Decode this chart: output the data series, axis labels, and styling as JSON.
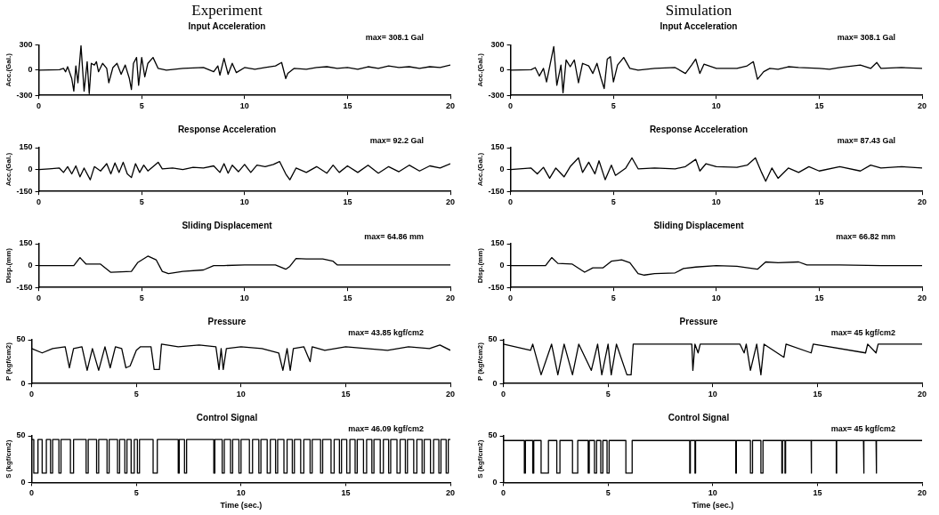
{
  "chart_data": [
    {
      "type": "line",
      "title": "Experiment",
      "subtitle": "Input Acceleration",
      "ylabel": "Acc.(Gal.)",
      "annotations": [
        "max= 308.1 Gal"
      ],
      "color": "#000000",
      "xlim": [
        0,
        20
      ],
      "xticks": [
        0,
        5,
        10,
        15,
        20
      ],
      "ylim": [
        -300,
        300
      ],
      "yticks": [
        -300,
        0,
        300
      ],
      "x": [
        0,
        1,
        1.2,
        1.3,
        1.4,
        1.6,
        1.7,
        1.8,
        1.9,
        2.05,
        2.2,
        2.35,
        2.45,
        2.55,
        2.7,
        2.8,
        2.9,
        3.1,
        3.3,
        3.4,
        3.6,
        3.8,
        4.0,
        4.2,
        4.4,
        4.5,
        4.6,
        4.75,
        4.85,
        5.0,
        5.15,
        5.3,
        5.55,
        5.8,
        6.2,
        7,
        8,
        8.5,
        8.7,
        8.8,
        9.0,
        9.2,
        9.4,
        9.6,
        10,
        10.5,
        11,
        11.5,
        11.8,
        12.0,
        12.1,
        12.4,
        13,
        13.5,
        14,
        14.5,
        15,
        15.5,
        16,
        16.5,
        17,
        17.5,
        18,
        18.5,
        19,
        19.5,
        20
      ],
      "values": [
        0,
        5,
        20,
        -20,
        40,
        -100,
        -250,
        50,
        -150,
        290,
        -250,
        100,
        -280,
        80,
        60,
        100,
        -20,
        80,
        20,
        -150,
        30,
        80,
        -50,
        60,
        -100,
        -230,
        80,
        150,
        -180,
        150,
        -80,
        80,
        150,
        20,
        0,
        20,
        30,
        -20,
        50,
        -60,
        140,
        -50,
        80,
        -30,
        30,
        10,
        30,
        50,
        90,
        -100,
        -40,
        20,
        10,
        30,
        40,
        20,
        30,
        10,
        40,
        20,
        50,
        30,
        40,
        20,
        40,
        30,
        60
      ]
    },
    {
      "type": "line",
      "title": "Simulation",
      "subtitle": "Input Acceleration",
      "ylabel": "Acc.(Gal.)",
      "annotations": [
        "max= 308.1 Gal"
      ],
      "color": "#000000",
      "xlim": [
        0,
        20
      ],
      "xticks": [
        0,
        5,
        10,
        15,
        20
      ],
      "ylim": [
        -300,
        300
      ],
      "yticks": [
        -300,
        0,
        300
      ],
      "x": [
        0,
        1,
        1.2,
        1.4,
        1.6,
        1.75,
        1.95,
        2.1,
        2.25,
        2.45,
        2.55,
        2.7,
        2.9,
        3.1,
        3.3,
        3.5,
        3.8,
        4.0,
        4.2,
        4.4,
        4.55,
        4.7,
        4.85,
        5.0,
        5.2,
        5.5,
        5.8,
        6.2,
        7,
        8,
        8.5,
        8.8,
        9.0,
        9.2,
        9.4,
        10,
        11,
        11.5,
        11.8,
        12.0,
        12.3,
        12.6,
        13,
        13.5,
        14,
        15,
        15.5,
        16,
        17,
        17.5,
        17.8,
        18,
        19,
        20
      ],
      "values": [
        0,
        5,
        30,
        -70,
        20,
        -140,
        100,
        280,
        -180,
        60,
        -270,
        120,
        40,
        120,
        -150,
        80,
        50,
        -40,
        80,
        -100,
        -220,
        130,
        160,
        -140,
        60,
        150,
        20,
        0,
        20,
        30,
        -40,
        60,
        130,
        -40,
        70,
        20,
        20,
        50,
        100,
        -110,
        -20,
        20,
        10,
        40,
        30,
        20,
        10,
        30,
        60,
        20,
        90,
        20,
        30,
        20
      ]
    },
    {
      "type": "line",
      "title": "Response Acceleration",
      "ylabel": "Acc.(Gal.)",
      "annotations": [
        "max= 92.2 Gal"
      ],
      "color": "#000000",
      "xlim": [
        0,
        20
      ],
      "xticks": [
        0,
        5,
        10,
        15,
        20
      ],
      "ylim": [
        -150,
        150
      ],
      "yticks": [
        -150,
        0,
        150
      ],
      "x": [
        0,
        0.5,
        1,
        1.2,
        1.4,
        1.6,
        1.8,
        2.0,
        2.2,
        2.5,
        2.7,
        3.0,
        3.3,
        3.5,
        3.7,
        3.9,
        4.1,
        4.3,
        4.5,
        4.7,
        4.9,
        5.1,
        5.3,
        5.8,
        6.0,
        6.5,
        7,
        7.5,
        8,
        8.5,
        8.8,
        9.0,
        9.2,
        9.4,
        9.7,
        10,
        10.3,
        10.6,
        11,
        11.4,
        11.7,
        12.0,
        12.2,
        12.5,
        13,
        13.5,
        14,
        14.3,
        14.6,
        15,
        15.5,
        16,
        16.5,
        17,
        17.5,
        18,
        18.5,
        19,
        19.5,
        20
      ],
      "values": [
        0,
        5,
        10,
        -20,
        20,
        -30,
        25,
        -50,
        10,
        -70,
        20,
        -10,
        40,
        -30,
        45,
        -20,
        50,
        -30,
        -55,
        40,
        -20,
        30,
        -10,
        50,
        5,
        10,
        0,
        15,
        10,
        25,
        -20,
        40,
        -25,
        30,
        -15,
        35,
        -20,
        30,
        20,
        35,
        55,
        -30,
        -70,
        10,
        -20,
        20,
        -25,
        30,
        -20,
        25,
        -20,
        30,
        -25,
        20,
        -15,
        30,
        -10,
        25,
        10,
        40
      ]
    },
    {
      "type": "line",
      "title": "Response Acceleration",
      "ylabel": "Acc.(Gal.)",
      "annotations": [
        "max= 87.43 Gal"
      ],
      "color": "#000000",
      "xlim": [
        0,
        20
      ],
      "xticks": [
        0,
        5,
        10,
        15,
        20
      ],
      "ylim": [
        -150,
        150
      ],
      "yticks": [
        -150,
        0,
        150
      ],
      "x": [
        0,
        1,
        1.3,
        1.6,
        1.9,
        2.2,
        2.6,
        2.9,
        3.3,
        3.5,
        3.8,
        4.1,
        4.3,
        4.6,
        4.9,
        5.1,
        5.6,
        5.9,
        6.2,
        7,
        8,
        8.5,
        9.0,
        9.2,
        9.5,
        10,
        11,
        11.5,
        11.9,
        12.2,
        12.4,
        12.7,
        13,
        13.5,
        14,
        14.5,
        15,
        16,
        17,
        17.5,
        18,
        19,
        20
      ],
      "values": [
        0,
        10,
        -30,
        15,
        -60,
        10,
        -50,
        20,
        80,
        -20,
        50,
        -30,
        60,
        -70,
        30,
        -40,
        10,
        80,
        5,
        10,
        5,
        20,
        70,
        -10,
        40,
        20,
        15,
        30,
        80,
        -20,
        -80,
        10,
        -60,
        10,
        -20,
        20,
        -10,
        20,
        -10,
        30,
        10,
        20,
        10
      ]
    },
    {
      "type": "line",
      "title": "Sliding Displacement",
      "ylabel": "Disp.(mm)",
      "annotations": [
        "max= 64.86 mm"
      ],
      "color": "#000000",
      "xlim": [
        0,
        20
      ],
      "xticks": [
        0,
        5,
        10,
        15,
        20
      ],
      "ylim": [
        -150,
        150
      ],
      "yticks": [
        -150,
        0,
        150
      ],
      "x": [
        0,
        1.7,
        2.0,
        2.3,
        3,
        3.5,
        4.5,
        4.8,
        5.3,
        5.7,
        6.0,
        6.3,
        7,
        8,
        8.5,
        9,
        10,
        11.5,
        12,
        12.2,
        12.5,
        13,
        13.8,
        14.3,
        14.5,
        16,
        20
      ],
      "values": [
        0,
        0,
        55,
        10,
        10,
        -46,
        -40,
        20,
        65,
        40,
        -40,
        -55,
        -40,
        -30,
        0,
        0,
        5,
        5,
        -25,
        -5,
        49,
        45,
        45,
        30,
        5,
        5,
        5
      ]
    },
    {
      "type": "line",
      "title": "Sliding Displacement",
      "ylabel": "Disp.(mm)",
      "annotations": [
        "max= 66.82 mm"
      ],
      "color": "#000000",
      "xlim": [
        0,
        20
      ],
      "xticks": [
        0,
        5,
        10,
        15,
        20
      ],
      "ylim": [
        -150,
        150
      ],
      "yticks": [
        -150,
        0,
        150
      ],
      "x": [
        0,
        1.7,
        2.0,
        2.3,
        3,
        3.6,
        4,
        4.5,
        4.9,
        5.4,
        5.8,
        6.2,
        6.5,
        7,
        8,
        8.4,
        9,
        10,
        11,
        12,
        12.4,
        13,
        14,
        14.4,
        16,
        18,
        20
      ],
      "values": [
        0,
        0,
        55,
        15,
        10,
        -45,
        -15,
        -15,
        30,
        40,
        20,
        -55,
        -65,
        -55,
        -50,
        -20,
        -10,
        0,
        -5,
        -25,
        25,
        20,
        25,
        5,
        5,
        0,
        0
      ]
    },
    {
      "type": "line",
      "title": "Pressure",
      "ylabel": "P (kgf/cm2)",
      "annotations": [
        "max= 43.85 kgf/cm2"
      ],
      "color": "#000000",
      "xlim": [
        0,
        20
      ],
      "xticks": [
        0,
        5,
        10,
        15,
        20
      ],
      "ylim": [
        0,
        50
      ],
      "yticks": [
        0,
        50
      ],
      "x": [
        0,
        0.5,
        1,
        1.6,
        1.8,
        2.0,
        2.4,
        2.65,
        2.9,
        3.2,
        3.5,
        3.75,
        4.0,
        4.3,
        4.5,
        4.7,
        5.0,
        5.2,
        5.7,
        5.85,
        6.1,
        6.2,
        7,
        8,
        8.8,
        8.95,
        9.05,
        9.15,
        9.3,
        10,
        11,
        11.8,
        12.0,
        12.2,
        12.35,
        12.5,
        13,
        13.3,
        13.4,
        14,
        15,
        16,
        17,
        18,
        19,
        19.5,
        20
      ],
      "values": [
        40,
        35,
        40,
        42,
        18,
        40,
        42,
        15,
        40,
        15,
        42,
        18,
        42,
        40,
        18,
        20,
        38,
        42,
        42,
        16,
        16,
        45,
        42,
        44,
        42,
        16,
        40,
        16,
        40,
        42,
        40,
        35,
        15,
        40,
        15,
        40,
        42,
        25,
        42,
        38,
        42,
        40,
        38,
        42,
        40,
        44,
        38
      ]
    },
    {
      "type": "line",
      "title": "Pressure",
      "ylabel": "P (kgf/cm2)",
      "annotations": [
        "max= 45 kgf/cm2"
      ],
      "color": "#000000",
      "xlim": [
        0,
        20
      ],
      "xticks": [
        0,
        5,
        10,
        15,
        20
      ],
      "ylim": [
        0,
        50
      ],
      "yticks": [
        0,
        50
      ],
      "x": [
        0,
        1.3,
        1.4,
        1.8,
        2.3,
        2.6,
        2.9,
        3.3,
        3.6,
        4.2,
        4.5,
        4.7,
        5.0,
        5.15,
        5.4,
        5.9,
        6.1,
        6.2,
        9.0,
        9.05,
        9.15,
        9.3,
        9.4,
        11.3,
        11.5,
        11.6,
        11.8,
        12.1,
        12.3,
        12.45,
        13.4,
        13.5,
        14.7,
        14.8,
        17.3,
        17.4,
        17.8,
        17.9,
        20
      ],
      "values": [
        45,
        38,
        45,
        10,
        45,
        10,
        45,
        10,
        45,
        15,
        45,
        10,
        45,
        10,
        45,
        10,
        10,
        45,
        45,
        15,
        45,
        35,
        45,
        45,
        35,
        45,
        15,
        45,
        10,
        45,
        30,
        45,
        35,
        45,
        35,
        45,
        35,
        45,
        45
      ]
    },
    {
      "type": "line",
      "title": "Control Signal",
      "xlabel": "Time (sec.)",
      "ylabel": "S (kgf/cm2)",
      "annotations": [
        "max= 46.09 kgf/cm2"
      ],
      "color": "#000000",
      "xlim": [
        0,
        20
      ],
      "xticks": [
        0,
        5,
        10,
        15,
        20
      ],
      "ylim": [
        0,
        50
      ],
      "yticks": [
        0,
        50
      ],
      "x": [
        0,
        0.1,
        0.1,
        0.3,
        0.3,
        0.5,
        0.5,
        0.7,
        0.7,
        0.9,
        0.9,
        1.0,
        1.0,
        1.3,
        1.3,
        1.4,
        1.4,
        1.85,
        1.85,
        2.0,
        2.0,
        2.6,
        2.6,
        2.7,
        2.7,
        3.1,
        3.1,
        3.2,
        3.2,
        3.6,
        3.6,
        3.7,
        3.7,
        4.1,
        4.1,
        4.2,
        4.2,
        4.45,
        4.45,
        4.55,
        4.55,
        4.75,
        4.75,
        4.9,
        4.9,
        5.05,
        5.05,
        5.15,
        5.15,
        5.8,
        5.8,
        6.0,
        6.0,
        7.0,
        7.0,
        7.05,
        7.05,
        7.3,
        7.3,
        7.4,
        7.4,
        8.7,
        8.7,
        8.75,
        8.75,
        9.1,
        9.1,
        9.2,
        9.2,
        9.5,
        9.5,
        9.6,
        9.6,
        9.9,
        9.9,
        10.0,
        10.0,
        10.4,
        10.4,
        10.55,
        10.55,
        10.85,
        10.85,
        10.95,
        10.95,
        11.25,
        11.25,
        11.4,
        11.4,
        11.65,
        11.65,
        11.75,
        11.75,
        12.05,
        12.05,
        12.2,
        12.2,
        12.45,
        12.45,
        12.55,
        12.55,
        12.85,
        12.85,
        13.0,
        13.0,
        13.3,
        13.3,
        13.4,
        13.4,
        13.8,
        13.8,
        13.9,
        13.9,
        14.3,
        14.3,
        14.45,
        14.45,
        14.7,
        14.7,
        14.8,
        14.8,
        15.05,
        15.05,
        15.2,
        15.2,
        15.45,
        15.45,
        15.55,
        15.55,
        15.85,
        15.85,
        16.0,
        16.0,
        16.25,
        16.25,
        16.35,
        16.35,
        16.65,
        16.65,
        16.8,
        16.8,
        17.05,
        17.05,
        17.15,
        17.15,
        17.45,
        17.45,
        17.6,
        17.6,
        17.85,
        17.85,
        17.95,
        17.95,
        18.25,
        18.25,
        18.4,
        18.4,
        18.65,
        18.65,
        18.75,
        18.75,
        19.05,
        19.05,
        19.2,
        19.2,
        19.45,
        19.45,
        19.55,
        19.55,
        19.8,
        19.8,
        19.9,
        19.9,
        20
      ],
      "values": [
        46,
        46,
        10,
        10,
        46,
        46,
        10,
        10,
        46,
        46,
        10,
        10,
        46,
        46,
        10,
        10,
        46,
        46,
        10,
        10,
        46,
        46,
        10,
        10,
        46,
        46,
        10,
        10,
        46,
        46,
        10,
        10,
        46,
        46,
        10,
        10,
        46,
        46,
        10,
        10,
        46,
        46,
        10,
        10,
        46,
        46,
        10,
        10,
        46,
        46,
        10,
        10,
        46,
        46,
        10,
        10,
        46,
        46,
        10,
        10,
        46,
        46,
        10,
        10,
        46,
        46,
        10,
        10,
        46,
        46,
        10,
        10,
        46,
        46,
        10,
        10,
        46,
        46,
        10,
        10,
        46,
        46,
        10,
        10,
        46,
        46,
        10,
        10,
        46,
        46,
        10,
        10,
        46,
        46,
        10,
        10,
        46,
        46,
        10,
        10,
        46,
        46,
        10,
        10,
        46,
        46,
        10,
        10,
        46,
        46,
        10,
        10,
        46,
        46,
        10,
        10,
        46,
        46,
        10,
        10,
        46,
        46,
        10,
        10,
        46,
        46,
        10,
        10,
        46,
        46,
        10,
        10,
        46,
        46,
        10,
        10,
        46,
        46,
        10,
        10,
        46,
        46,
        10,
        10,
        46,
        46,
        10,
        10,
        46,
        46,
        10,
        10,
        46,
        46,
        10,
        10,
        46,
        46,
        10,
        10,
        46,
        46,
        10,
        10,
        46,
        46,
        10,
        10,
        46,
        46,
        10,
        10,
        46,
        46
      ]
    },
    {
      "type": "line",
      "title": "Control Signal",
      "xlabel": "Time (sec.)",
      "ylabel": "S (kgf/cm2)",
      "annotations": [
        "max= 45 kgf/cm2"
      ],
      "color": "#000000",
      "xlim": [
        0,
        20
      ],
      "xticks": [
        0,
        5,
        10,
        15,
        20
      ],
      "ylim": [
        0,
        50
      ],
      "yticks": [
        0,
        50
      ],
      "x": [
        0,
        1.0,
        1.0,
        1.05,
        1.05,
        1.4,
        1.4,
        1.45,
        1.45,
        1.8,
        1.8,
        2.15,
        2.15,
        2.55,
        2.55,
        2.7,
        2.7,
        3.3,
        3.3,
        3.55,
        3.55,
        4.05,
        4.05,
        4.1,
        4.1,
        4.35,
        4.35,
        4.45,
        4.45,
        4.65,
        4.65,
        4.75,
        4.75,
        4.95,
        4.95,
        5.05,
        5.05,
        5.85,
        5.85,
        6.15,
        6.15,
        8.9,
        8.9,
        8.93,
        8.93,
        9.15,
        9.15,
        9.18,
        9.18,
        11.1,
        11.1,
        11.13,
        11.13,
        11.8,
        11.8,
        11.9,
        11.9,
        12.3,
        12.3,
        12.4,
        12.4,
        13.3,
        13.3,
        13.33,
        13.33,
        13.45,
        13.45,
        13.48,
        13.48,
        14.7,
        14.7,
        14.72,
        14.72,
        15.9,
        15.9,
        15.92,
        15.92,
        17.2,
        17.2,
        17.23,
        17.23,
        17.8,
        17.8,
        17.83,
        17.83,
        20
      ],
      "values": [
        45,
        45,
        10,
        10,
        45,
        45,
        10,
        10,
        45,
        45,
        10,
        10,
        45,
        45,
        10,
        10,
        45,
        45,
        10,
        10,
        45,
        45,
        10,
        10,
        45,
        45,
        10,
        10,
        45,
        45,
        10,
        10,
        45,
        45,
        10,
        10,
        45,
        45,
        10,
        10,
        45,
        45,
        10,
        10,
        45,
        45,
        10,
        10,
        45,
        45,
        10,
        10,
        45,
        45,
        10,
        10,
        45,
        45,
        10,
        10,
        45,
        45,
        10,
        10,
        45,
        45,
        10,
        10,
        45,
        45,
        10,
        10,
        45,
        45,
        10,
        10,
        45,
        45,
        10,
        10,
        45,
        45,
        10,
        10,
        45,
        45
      ]
    }
  ]
}
